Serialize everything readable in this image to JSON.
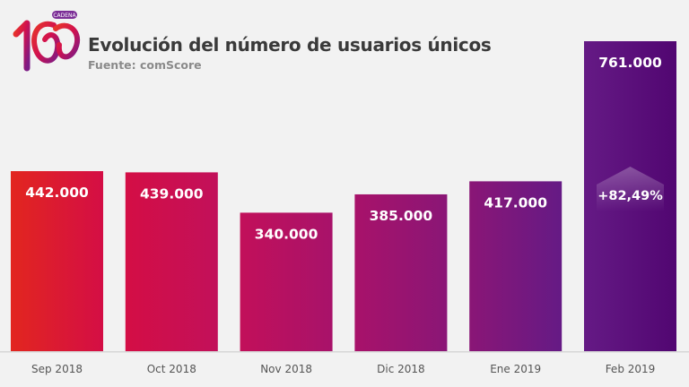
{
  "header": {
    "logo_text": "CADENA 100",
    "logo_badge": "CADENA",
    "title": "Evolución del número de usuarios únicos",
    "subtitle": "Fuente: comScore"
  },
  "chart_data": {
    "type": "bar",
    "title": "Evolución del número de usuarios únicos",
    "subtitle": "Fuente: comScore",
    "xlabel": "",
    "ylabel": "",
    "categories": [
      "Sep 2018",
      "Oct 2018",
      "Nov 2018",
      "Dic 2018",
      "Ene 2019",
      "Feb 2019"
    ],
    "values": [
      442000,
      439000,
      340000,
      385000,
      417000,
      761000
    ],
    "value_labels": [
      "442.000",
      "439.000",
      "340.000",
      "385.000",
      "417.000",
      "761.000"
    ],
    "ylim": [
      0,
      800000
    ],
    "grid": false,
    "legend": "none",
    "bar_colors": [
      "#e2261f",
      "#d40e45",
      "#c2105a",
      "#a8126a",
      "#8a1676",
      "#651a85"
    ],
    "annotations": [
      {
        "category": "Feb 2019",
        "text": "+82,49%"
      }
    ]
  }
}
